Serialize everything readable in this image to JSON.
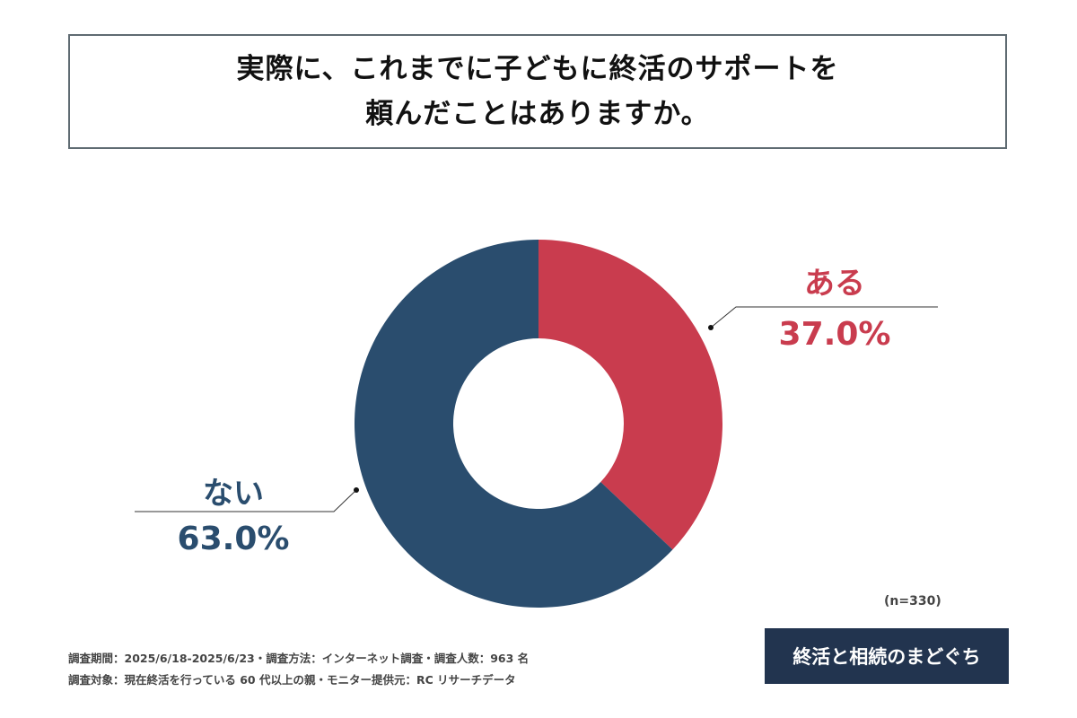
{
  "title": {
    "line1": "実際に、これまでに子どもに終活のサポートを",
    "line2": "頼んだことはありますか。"
  },
  "chart_data": {
    "type": "pie",
    "donut": true,
    "categories": [
      "ある",
      "ない"
    ],
    "values": [
      37.0,
      63.0
    ],
    "value_labels": [
      "37.0%",
      "63.0%"
    ],
    "colors": [
      "#c93c4e",
      "#2a4d6e"
    ],
    "start": "top, clockwise",
    "sample": "(n=330)"
  },
  "footer": {
    "line1": "調査期間：2025/6/18-2025/6/23・調査方法：インターネット調査・調査人数：963 名",
    "line2": "調査対象：現在終活を行っている 60 代以上の親・モニター提供元：RC リサーチデータ"
  },
  "logo": "終活と相続のまどぐち"
}
